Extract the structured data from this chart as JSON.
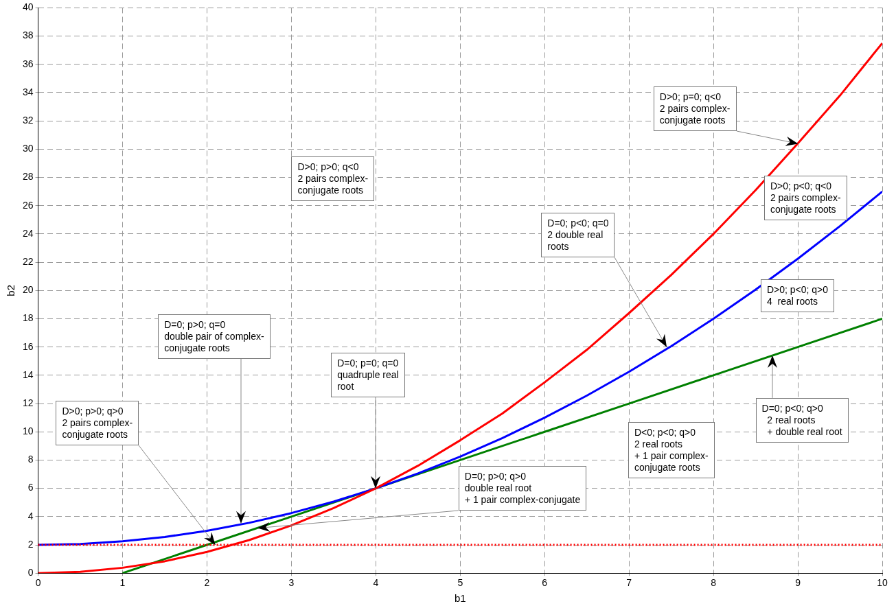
{
  "chart_data": {
    "type": "line",
    "xlabel": "b1",
    "ylabel": "b2",
    "xlim": [
      0,
      10
    ],
    "ylim": [
      0,
      40
    ],
    "xticks": [
      0,
      1,
      2,
      3,
      4,
      5,
      6,
      7,
      8,
      9,
      10
    ],
    "yticks": [
      0,
      2,
      4,
      6,
      8,
      10,
      12,
      14,
      16,
      18,
      20,
      22,
      24,
      26,
      28,
      30,
      32,
      34,
      36,
      38,
      40
    ],
    "grid": true,
    "legend": false,
    "marker": "none",
    "line_style": "solid",
    "series": [
      {
        "color": "#ff0000",
        "x": [
          0,
          0.5,
          1,
          1.5,
          2,
          2.5,
          3,
          3.5,
          4,
          4.5,
          5,
          5.5,
          6,
          6.5,
          7,
          7.5,
          8,
          8.5,
          9,
          9.5,
          10
        ],
        "values": [
          0,
          0.09,
          0.38,
          0.84,
          1.5,
          2.34,
          3.38,
          4.6,
          6,
          7.6,
          9.4,
          11.3,
          13.5,
          15.8,
          18.4,
          21.1,
          24,
          27.1,
          30.4,
          33.8,
          37.5
        ]
      },
      {
        "color": "#0000ff",
        "x": [
          0,
          0.5,
          1,
          1.5,
          2,
          2.5,
          3,
          3.5,
          4,
          4.5,
          5,
          5.5,
          6,
          6.5,
          7,
          7.5,
          8,
          8.5,
          9,
          9.5,
          10
        ],
        "values": [
          2,
          2.06,
          2.25,
          2.56,
          3,
          3.56,
          4.25,
          5.06,
          6,
          7.06,
          8.25,
          9.56,
          11,
          12.56,
          14.25,
          16.06,
          18,
          20.06,
          22.25,
          24.56,
          27
        ]
      },
      {
        "color": "#008000",
        "x": [
          1,
          2,
          3,
          4,
          5,
          6,
          7,
          8,
          9,
          10
        ],
        "values": [
          0,
          2,
          4,
          6,
          8,
          10,
          12,
          14,
          16,
          18
        ]
      }
    ],
    "ref_lines": [
      {
        "axis": "y",
        "value": 2,
        "color": "#ff0000",
        "line_style": "dotted"
      }
    ],
    "annotations": [
      {
        "text": "D>0; p=0; q<0\n2 pairs complex-\nconjugate roots",
        "x": 9,
        "y": 30.4
      },
      "D>0; p>0; q<0\n2 pairs complex-\nconjugate roots",
      "D>0; p<0; q<0\n2 pairs complex-\nconjugate roots",
      {
        "text": "D=0; p<0; q=0\n2 double real\nroots",
        "x": 7.45,
        "y": 16
      },
      "D>0; p<0; q>0\n4  real roots",
      {
        "text": "D=0; p<0; q>0\n  2 real roots\n  + double real root",
        "x": 8.7,
        "y": 15.4
      },
      "D<0; p<0; q>0\n2 real roots\n+ 1 pair complex-\nconjugate roots",
      {
        "text": "D=0; p>0; q=0\ndouble pair of complex-\nconjugate roots",
        "x": 2.4,
        "y": 3.5
      },
      {
        "text": "D=0; p=0; q=0\nquadruple real\nroot",
        "x": 4,
        "y": 6
      },
      {
        "text": "D>0; p>0; q>0\n2 pairs complex-\nconjugate roots",
        "x": 2.1,
        "y": 2
      },
      {
        "text": "D=0; p>0; q>0\ndouble real root\n+ 1 pair complex-conjugate",
        "x": 2.6,
        "y": 3.2
      }
    ]
  }
}
